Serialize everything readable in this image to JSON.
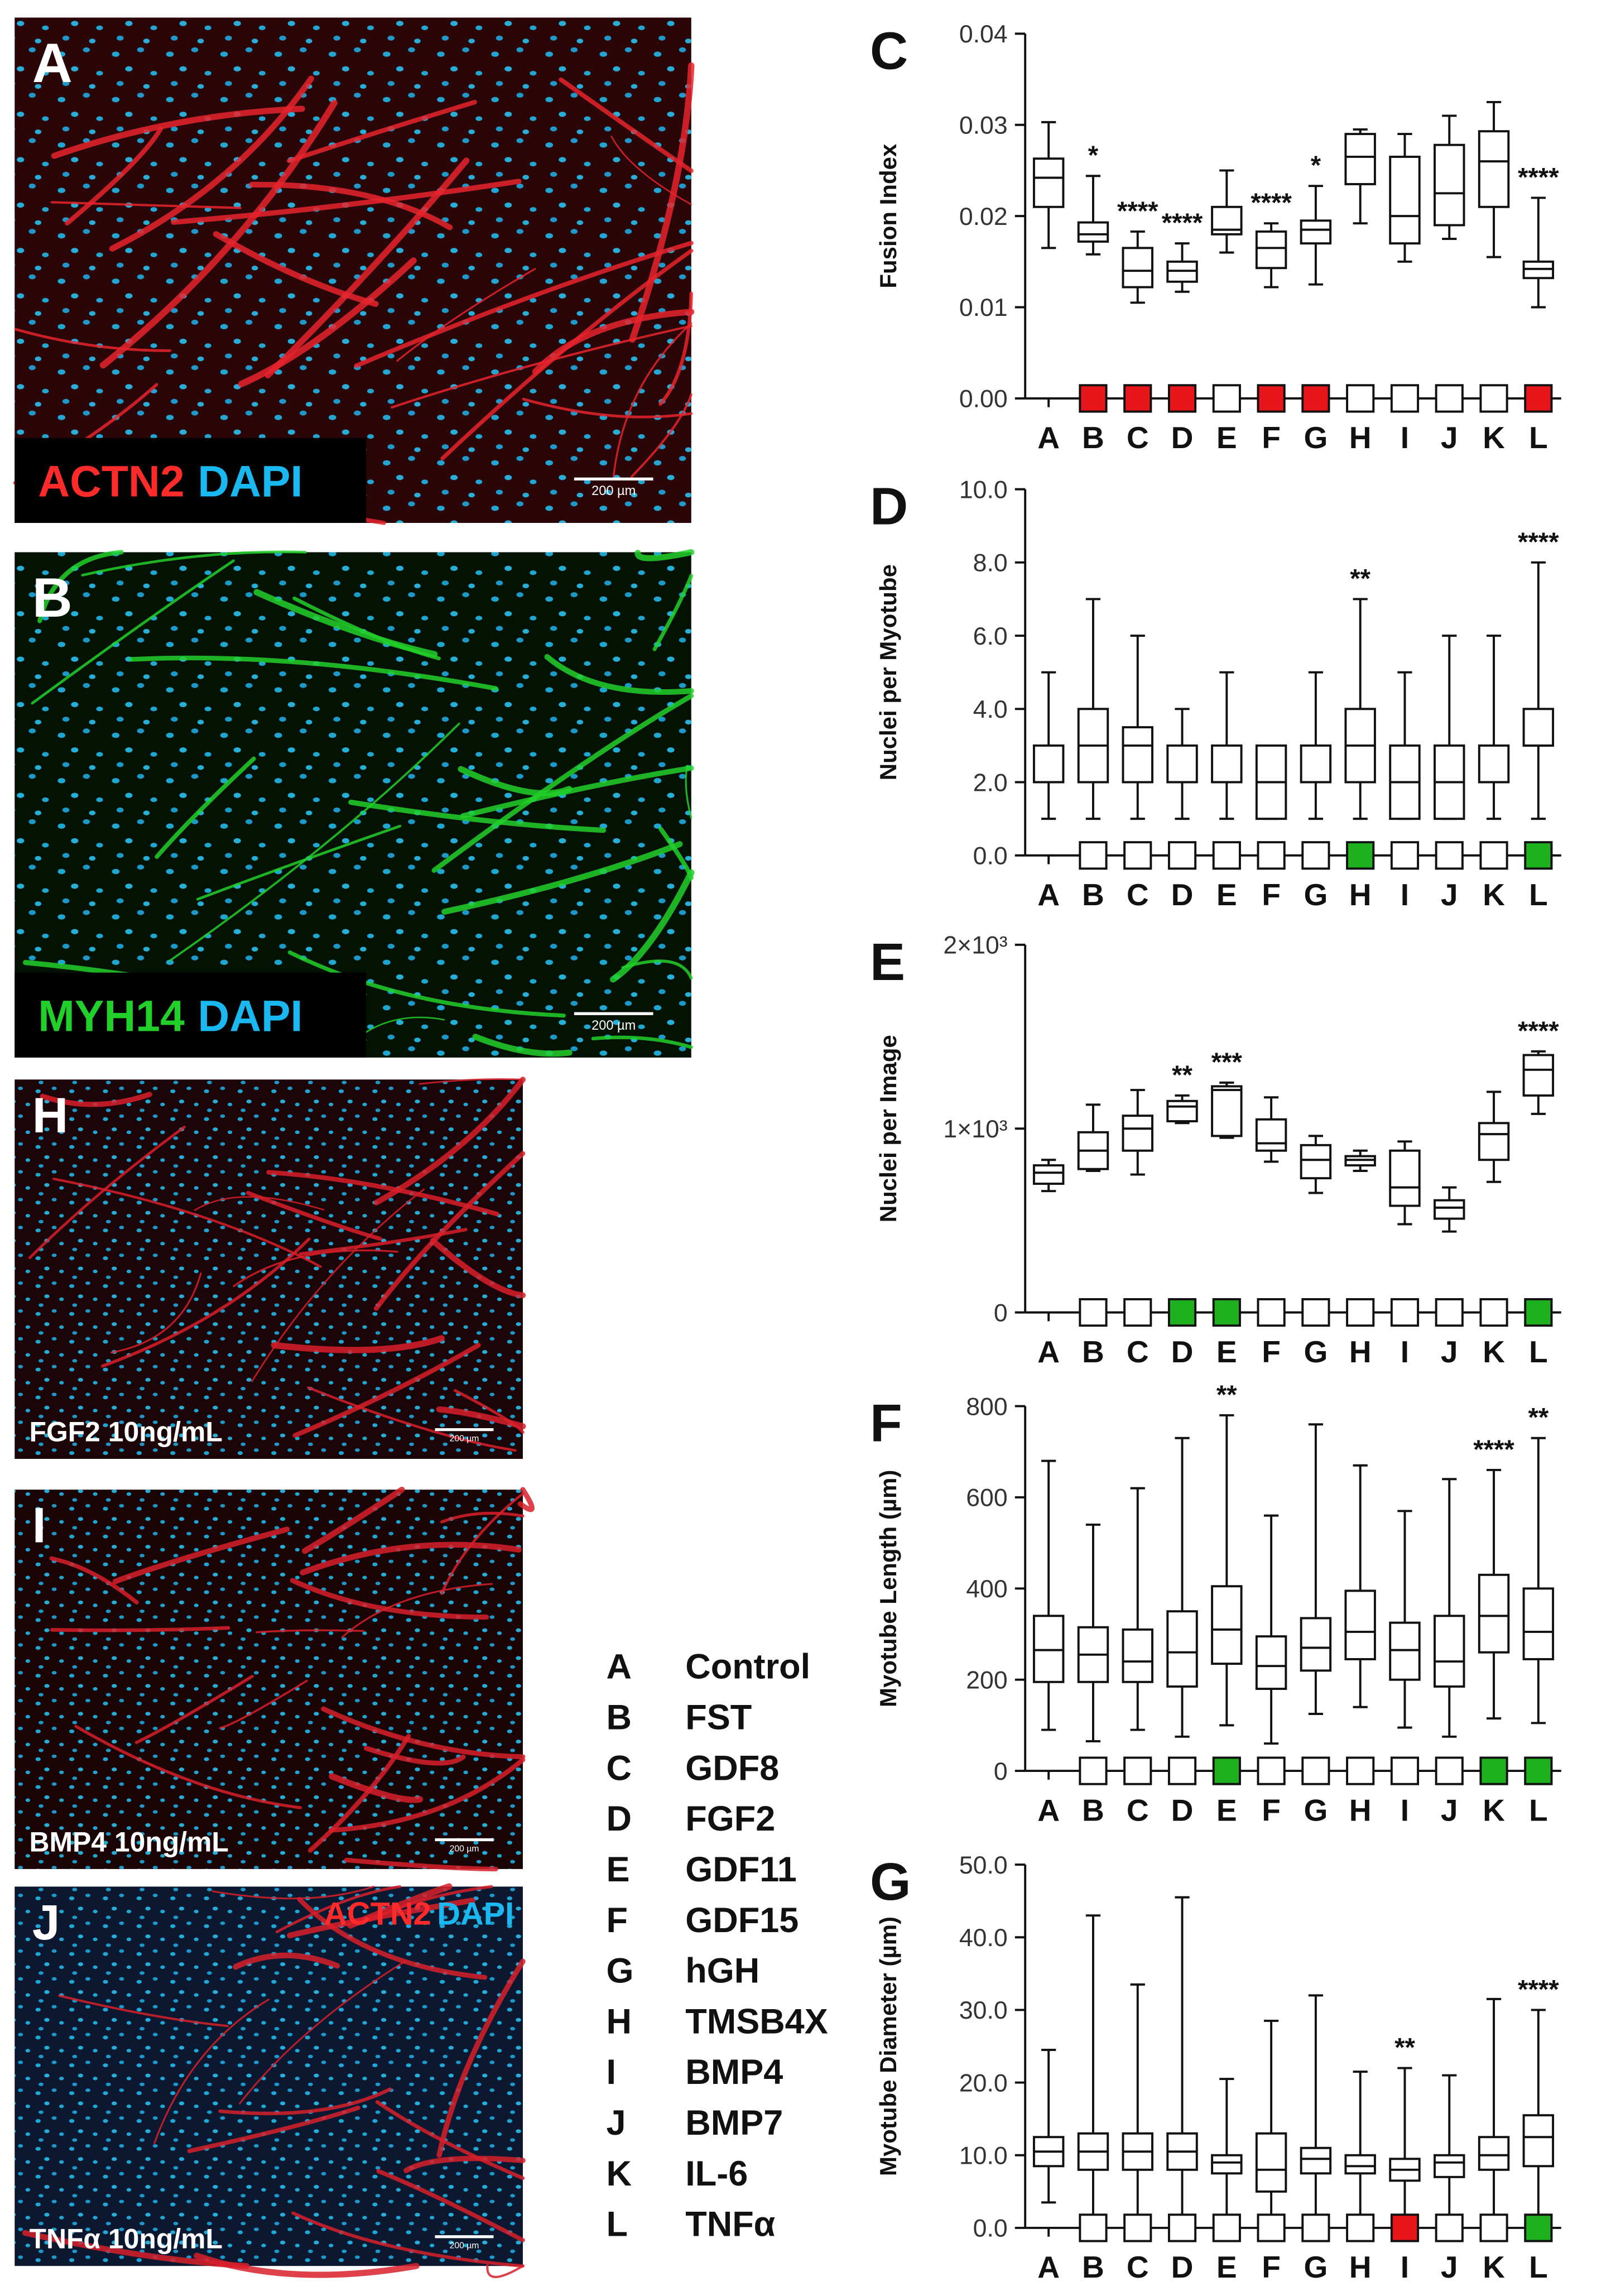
{
  "panels": [
    {
      "letter": "A",
      "background": "#2a0608",
      "stain": "#e8252d",
      "captions": [
        {
          "text": "ACTN2",
          "color": "#ff2a2a"
        },
        {
          "text": "DAPI",
          "color": "#1ab8f0"
        }
      ],
      "scale_label": "200 µm"
    },
    {
      "letter": "B",
      "background": "#031203",
      "stain": "#22d02a",
      "captions": [
        {
          "text": "MYH14",
          "color": "#22d02a"
        },
        {
          "text": "DAPI",
          "color": "#1ab8f0"
        }
      ],
      "scale_label": "200 µm"
    },
    {
      "letter": "H",
      "background": "#1c0508",
      "stain": "#d8202a",
      "label": "FGF2 10ng/mL",
      "scale_label": "200 µm"
    },
    {
      "letter": "I",
      "background": "#1a0406",
      "stain": "#d8202a",
      "label": "BMP4 10ng/mL",
      "scale_label": "200 µm"
    },
    {
      "letter": "J",
      "background": "#0c1830",
      "stain": "#d8202a",
      "label": "TNFα 10ng/mL",
      "captions": [
        {
          "text": "ACTN2",
          "color": "#ff2a2a"
        },
        {
          "text": "DAPI",
          "color": "#1ab8f0"
        }
      ],
      "scale_label": "200 µm"
    }
  ],
  "key": [
    {
      "letter": "A",
      "name": "Control"
    },
    {
      "letter": "B",
      "name": "FST"
    },
    {
      "letter": "C",
      "name": "GDF8"
    },
    {
      "letter": "D",
      "name": "FGF2"
    },
    {
      "letter": "E",
      "name": "GDF11"
    },
    {
      "letter": "F",
      "name": "GDF15"
    },
    {
      "letter": "G",
      "name": "hGH"
    },
    {
      "letter": "H",
      "name": "TMSB4X"
    },
    {
      "letter": "I",
      "name": "BMP4"
    },
    {
      "letter": "J",
      "name": "BMP7"
    },
    {
      "letter": "K",
      "name": "IL-6"
    },
    {
      "letter": "L",
      "name": "TNFα"
    }
  ],
  "chart_data": [
    {
      "type": "box",
      "panel": "C",
      "ylabel": "Fusion Index",
      "categories": [
        "A",
        "B",
        "C",
        "D",
        "E",
        "F",
        "G",
        "H",
        "I",
        "J",
        "K",
        "L"
      ],
      "ylim": [
        0,
        0.04
      ],
      "yticks": [
        {
          "value": 0,
          "label": "0.00"
        },
        0.01,
        0.02,
        0.03,
        0.04
      ],
      "min": [
        0.0165,
        0.0158,
        0.0105,
        0.0117,
        0.016,
        0.0122,
        0.0125,
        0.0192,
        0.015,
        0.0175,
        0.0155,
        0.01
      ],
      "q1": [
        0.021,
        0.0172,
        0.0122,
        0.0128,
        0.018,
        0.0143,
        0.017,
        0.0235,
        0.017,
        0.019,
        0.021,
        0.0132
      ],
      "median": [
        0.0242,
        0.018,
        0.014,
        0.014,
        0.0185,
        0.0165,
        0.0185,
        0.0265,
        0.02,
        0.0225,
        0.026,
        0.0142
      ],
      "q3": [
        0.0263,
        0.0193,
        0.0165,
        0.015,
        0.021,
        0.0183,
        0.0195,
        0.029,
        0.0265,
        0.0278,
        0.0293,
        0.015
      ],
      "max": [
        0.0303,
        0.0244,
        0.0183,
        0.017,
        0.025,
        0.0192,
        0.0233,
        0.0295,
        0.029,
        0.031,
        0.0325,
        0.022
      ],
      "annotations": [
        null,
        "*",
        "****",
        "****",
        null,
        "****",
        "*",
        null,
        null,
        null,
        null,
        "****"
      ],
      "marker_colors": [
        null,
        "#e8151b",
        "#e8151b",
        "#e8151b",
        "#ffffff",
        "#e8151b",
        "#e8151b",
        "#ffffff",
        "#ffffff",
        "#ffffff",
        "#ffffff",
        "#e8151b"
      ]
    },
    {
      "type": "box",
      "panel": "D",
      "ylabel": "Nuclei per Myotube",
      "categories": [
        "A",
        "B",
        "C",
        "D",
        "E",
        "F",
        "G",
        "H",
        "I",
        "J",
        "K",
        "L"
      ],
      "ylim": [
        0,
        10
      ],
      "yticks": [
        {
          "value": 0,
          "label": "0.0"
        },
        {
          "value": 2,
          "label": "2.0"
        },
        {
          "value": 4,
          "label": "4.0"
        },
        {
          "value": 6,
          "label": "6.0"
        },
        {
          "value": 8,
          "label": "8.0"
        },
        {
          "value": 10,
          "label": "10.0"
        }
      ],
      "min": [
        1,
        1,
        1,
        1,
        1,
        1,
        1,
        1,
        1,
        1,
        1,
        1
      ],
      "q1": [
        2,
        2,
        2,
        2,
        2,
        1,
        2,
        2,
        1,
        1,
        2,
        3
      ],
      "median": [
        2,
        3,
        3,
        2,
        2,
        2,
        2,
        3,
        2,
        2,
        2,
        3
      ],
      "q3": [
        3,
        4,
        3.5,
        3,
        3,
        3,
        3,
        4,
        3,
        3,
        3,
        4
      ],
      "max": [
        5,
        7,
        6,
        4,
        5,
        3,
        5,
        7,
        5,
        6,
        6,
        8
      ],
      "annotations": [
        null,
        null,
        null,
        null,
        null,
        null,
        null,
        "**",
        null,
        null,
        null,
        "****"
      ],
      "marker_colors": [
        null,
        "#ffffff",
        "#ffffff",
        "#ffffff",
        "#ffffff",
        "#ffffff",
        "#ffffff",
        "#1fb01f",
        "#ffffff",
        "#ffffff",
        "#ffffff",
        "#1fb01f"
      ]
    },
    {
      "type": "box",
      "panel": "E",
      "ylabel": "Nuclei per Image",
      "categories": [
        "A",
        "B",
        "C",
        "D",
        "E",
        "F",
        "G",
        "H",
        "I",
        "J",
        "K",
        "L"
      ],
      "ylim": [
        0,
        2000
      ],
      "yticks": [
        0,
        {
          "value": 1000,
          "label": "1×10³"
        },
        {
          "value": 2000,
          "label": "2×10³"
        }
      ],
      "min": [
        660,
        770,
        750,
        1030,
        950,
        820,
        650,
        770,
        480,
        440,
        710,
        1080
      ],
      "q1": [
        700,
        780,
        880,
        1040,
        960,
        880,
        730,
        800,
        580,
        510,
        830,
        1180
      ],
      "median": [
        760,
        880,
        1000,
        1120,
        1210,
        920,
        830,
        830,
        680,
        570,
        970,
        1320
      ],
      "q3": [
        800,
        980,
        1070,
        1150,
        1230,
        1050,
        910,
        850,
        880,
        610,
        1030,
        1400
      ],
      "max": [
        830,
        1130,
        1210,
        1180,
        1250,
        1170,
        960,
        880,
        930,
        680,
        1200,
        1420
      ],
      "annotations": [
        null,
        null,
        null,
        "**",
        "***",
        null,
        null,
        null,
        null,
        null,
        null,
        "****"
      ],
      "marker_colors": [
        null,
        "#ffffff",
        "#ffffff",
        "#1fb01f",
        "#1fb01f",
        "#ffffff",
        "#ffffff",
        "#ffffff",
        "#ffffff",
        "#ffffff",
        "#ffffff",
        "#1fb01f"
      ]
    },
    {
      "type": "box",
      "panel": "F",
      "ylabel": "Myotube Length (µm)",
      "categories": [
        "A",
        "B",
        "C",
        "D",
        "E",
        "F",
        "G",
        "H",
        "I",
        "J",
        "K",
        "L"
      ],
      "ylim": [
        0,
        800
      ],
      "yticks": [
        0,
        200,
        400,
        600,
        800
      ],
      "min": [
        90,
        65,
        90,
        75,
        100,
        60,
        125,
        140,
        95,
        75,
        115,
        105
      ],
      "q1": [
        195,
        195,
        195,
        185,
        235,
        180,
        220,
        245,
        200,
        185,
        260,
        245
      ],
      "median": [
        265,
        255,
        240,
        260,
        310,
        230,
        270,
        305,
        265,
        240,
        340,
        305
      ],
      "q3": [
        340,
        315,
        310,
        350,
        405,
        295,
        335,
        395,
        325,
        340,
        430,
        400
      ],
      "max": [
        680,
        540,
        620,
        730,
        780,
        560,
        760,
        670,
        570,
        640,
        660,
        730
      ],
      "annotations": [
        null,
        null,
        null,
        null,
        "**",
        null,
        null,
        null,
        null,
        null,
        "****",
        "**"
      ],
      "marker_colors": [
        null,
        "#ffffff",
        "#ffffff",
        "#ffffff",
        "#1fb01f",
        "#ffffff",
        "#ffffff",
        "#ffffff",
        "#ffffff",
        "#ffffff",
        "#1fb01f",
        "#1fb01f"
      ]
    },
    {
      "type": "box",
      "panel": "G",
      "ylabel": "Myotube Diameter (µm)",
      "categories": [
        "A",
        "B",
        "C",
        "D",
        "E",
        "F",
        "G",
        "H",
        "I",
        "J",
        "K",
        "L"
      ],
      "ylim": [
        0,
        50
      ],
      "yticks": [
        {
          "value": 0,
          "label": "0.0"
        },
        {
          "value": 10,
          "label": "10.0"
        },
        {
          "value": 20,
          "label": "20.0"
        },
        {
          "value": 30,
          "label": "30.0"
        },
        {
          "value": 40,
          "label": "40.0"
        },
        {
          "value": 50,
          "label": "50.0"
        }
      ],
      "min": [
        3.5,
        1.5,
        1.5,
        1.5,
        1.5,
        1.5,
        1.5,
        1.5,
        1.5,
        1.5,
        1.5,
        1.5
      ],
      "q1": [
        8.5,
        8,
        8,
        8,
        7.5,
        5,
        7.5,
        7.5,
        6.5,
        7,
        8,
        8.5
      ],
      "median": [
        10.5,
        10.5,
        10.5,
        10.5,
        9,
        8,
        9.5,
        8.5,
        8,
        9,
        10,
        12.5
      ],
      "q3": [
        12.5,
        13,
        13,
        13,
        10,
        13,
        11,
        10,
        9.5,
        10,
        12.5,
        15.5
      ],
      "max": [
        24.5,
        43,
        33.5,
        45.5,
        20.5,
        28.5,
        32,
        21.5,
        22,
        21,
        31.5,
        30
      ],
      "annotations": [
        null,
        null,
        null,
        null,
        null,
        null,
        null,
        null,
        "**",
        null,
        null,
        "****"
      ],
      "marker_colors": [
        null,
        "#ffffff",
        "#ffffff",
        "#ffffff",
        "#ffffff",
        "#ffffff",
        "#ffffff",
        "#ffffff",
        "#e8151b",
        "#ffffff",
        "#ffffff",
        "#1fb01f"
      ]
    }
  ]
}
